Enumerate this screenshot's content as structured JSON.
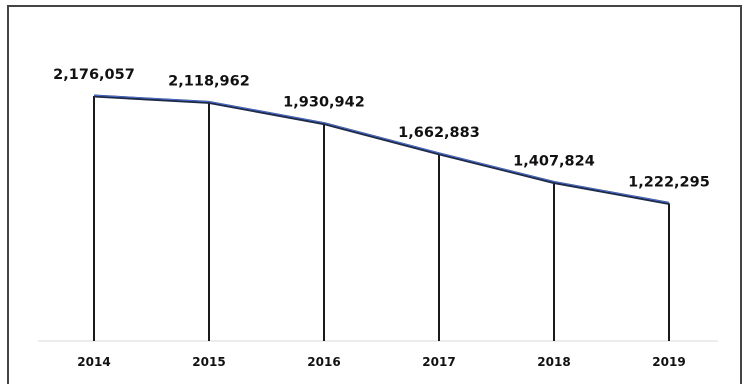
{
  "chart_data": {
    "type": "line",
    "categories": [
      "2014",
      "2015",
      "2016",
      "2017",
      "2018",
      "2019"
    ],
    "values": [
      2176057,
      2118962,
      1930942,
      1662883,
      1407824,
      1222295
    ],
    "data_labels": [
      "2,176,057",
      "2,118,962",
      "1,930,942",
      "1,662,883",
      "1,407,824",
      "1,222,295"
    ],
    "title": "",
    "xlabel": "",
    "ylabel": "",
    "ylim": [
      0,
      2176057
    ],
    "grid": false,
    "legend": "none",
    "drop_lines": true,
    "colors": {
      "line": "#1f2a44",
      "line_highlight": "#4a6fd8",
      "drop_line": "#1a1a1a",
      "axis": "#d9d9d9",
      "frame": "#444444"
    }
  }
}
